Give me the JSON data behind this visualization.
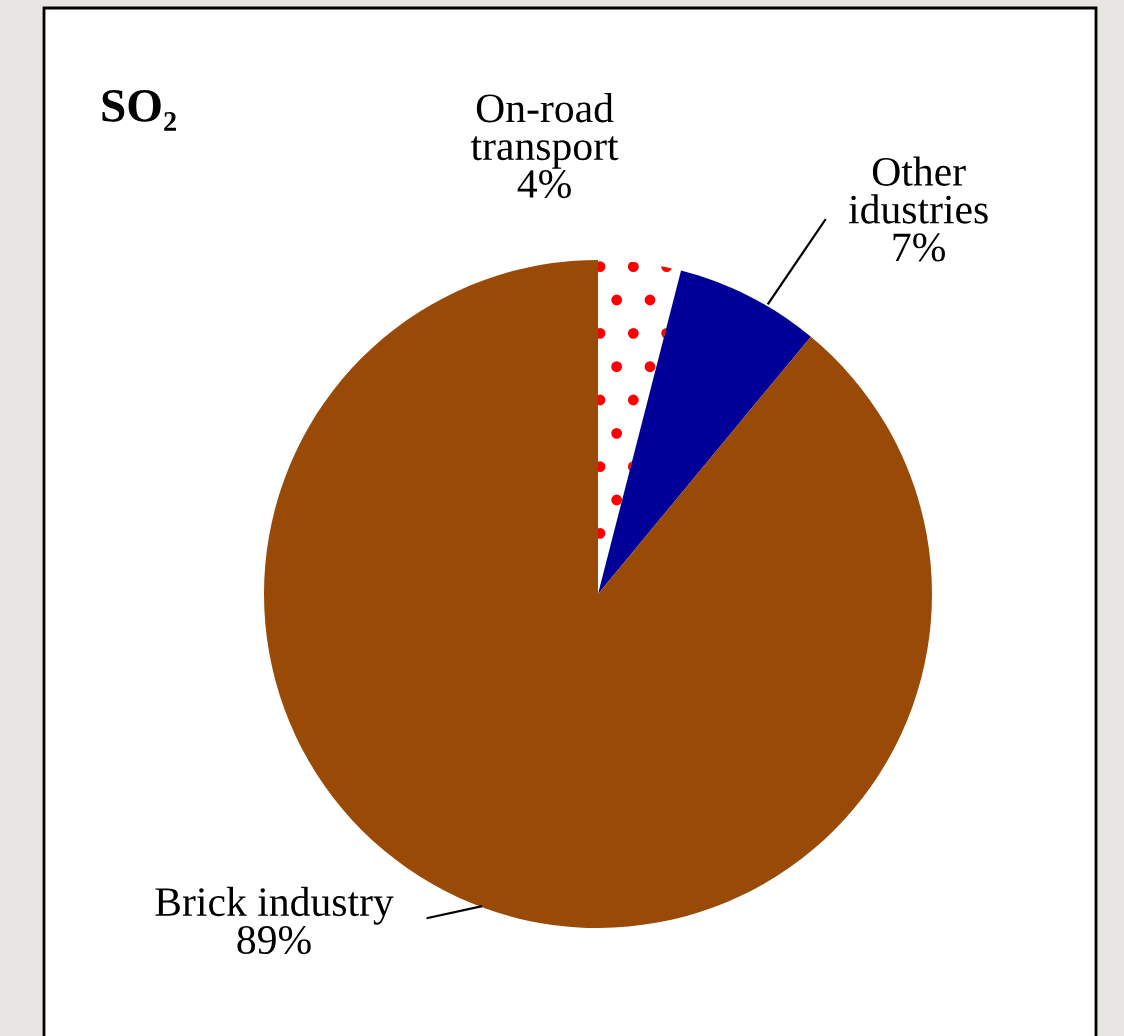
{
  "chart_data": {
    "type": "pie",
    "title": "SO₂",
    "categories": [
      "On-road\ntransport",
      "Other\nidustries",
      "Brick industry"
    ],
    "values": [
      4,
      7,
      89
    ],
    "colors": [
      "#ffffff",
      "#000099",
      "#994a06"
    ],
    "value_labels": [
      "4%",
      "7%",
      "89%"
    ]
  }
}
